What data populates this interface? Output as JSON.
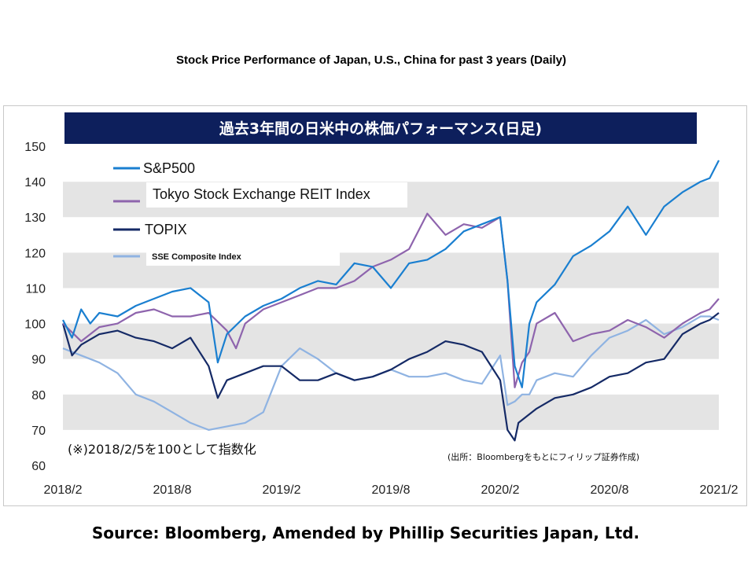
{
  "title": "Stock Price Performance of Japan, U.S., China for past 3 years (Daily)",
  "source": "Source: Bloomberg, Amended by Phillip Securities Japan, Ltd.",
  "chart_data": {
    "type": "line",
    "title": "過去3年間の日米中の株価パフォーマンス(日足)",
    "note": "(※)2018/2/5を100として指数化",
    "credit": "(出所：Bloombergをもとにフィリップ証券作成)",
    "ylim": [
      60,
      150
    ],
    "yticks": [
      60,
      70,
      80,
      90,
      100,
      110,
      120,
      130,
      140,
      150
    ],
    "xticks": [
      "2018/2",
      "2018/8",
      "2019/2",
      "2019/8",
      "2020/2",
      "2020/8",
      "2021/2"
    ],
    "xtick_pos": [
      0,
      6,
      12,
      18,
      24,
      30,
      36
    ],
    "grid": "horizontal bands",
    "legend_position": "top-left",
    "series": [
      {
        "name": "S&P500",
        "color": "#1a7fd0",
        "x": [
          0,
          0.5,
          1,
          1.5,
          2,
          3,
          4,
          5,
          6,
          7,
          8,
          8.5,
          9,
          10,
          11,
          12,
          13,
          14,
          15,
          16,
          17,
          18,
          19,
          20,
          21,
          22,
          23,
          24,
          24.4,
          24.8,
          25.2,
          25.6,
          26,
          27,
          28,
          29,
          30,
          31,
          32,
          33,
          34,
          35,
          35.5,
          36
        ],
        "values": [
          101,
          96,
          104,
          100,
          103,
          102,
          105,
          107,
          109,
          110,
          106,
          89,
          97,
          102,
          105,
          107,
          110,
          112,
          111,
          117,
          116,
          110,
          117,
          118,
          121,
          126,
          128,
          130,
          112,
          88,
          82,
          100,
          106,
          111,
          119,
          122,
          126,
          133,
          125,
          133,
          137,
          140,
          141,
          146
        ]
      },
      {
        "name": "Tokyo Stock Exchange REIT Index",
        "color": "#8e64ad",
        "x": [
          0,
          1,
          2,
          3,
          4,
          5,
          6,
          7,
          8,
          9,
          9.5,
          10,
          11,
          12,
          13,
          14,
          15,
          16,
          17,
          18,
          19,
          20,
          21,
          22,
          23,
          24,
          24.4,
          24.8,
          25.2,
          25.6,
          26,
          27,
          28,
          29,
          30,
          31,
          32,
          33,
          34,
          35,
          35.5,
          36
        ],
        "values": [
          100,
          95,
          99,
          100,
          103,
          104,
          102,
          102,
          103,
          98,
          93,
          100,
          104,
          106,
          108,
          110,
          110,
          112,
          116,
          118,
          121,
          131,
          125,
          128,
          127,
          130,
          112,
          82,
          89,
          92,
          100,
          103,
          95,
          97,
          98,
          101,
          99,
          96,
          100,
          103,
          104,
          107
        ]
      },
      {
        "name": "TOPIX",
        "color": "#152a66",
        "x": [
          0,
          0.5,
          1,
          2,
          3,
          4,
          5,
          6,
          7,
          8,
          8.5,
          9,
          10,
          11,
          12,
          13,
          14,
          15,
          16,
          17,
          18,
          19,
          20,
          21,
          22,
          23,
          24,
          24.4,
          24.8,
          25,
          25.5,
          26,
          27,
          28,
          29,
          30,
          31,
          32,
          33,
          34,
          35,
          35.5,
          36
        ],
        "values": [
          100,
          91,
          94,
          97,
          98,
          96,
          95,
          93,
          96,
          88,
          79,
          84,
          86,
          88,
          88,
          84,
          84,
          86,
          84,
          85,
          87,
          90,
          92,
          95,
          94,
          92,
          84,
          70,
          67,
          72,
          74,
          76,
          79,
          80,
          82,
          85,
          86,
          89,
          90,
          97,
          100,
          101,
          103
        ]
      },
      {
        "name": "SSE Composite Index",
        "color": "#8fb3e2",
        "x": [
          0,
          1,
          2,
          3,
          4,
          5,
          6,
          7,
          8,
          9,
          10,
          11,
          12,
          13,
          14,
          15,
          16,
          17,
          18,
          19,
          20,
          21,
          22,
          23,
          24,
          24.4,
          24.8,
          25.2,
          25.6,
          26,
          27,
          28,
          29,
          30,
          31,
          32,
          33,
          34,
          35,
          35.5,
          36
        ],
        "values": [
          93,
          91,
          89,
          86,
          80,
          78,
          75,
          72,
          70,
          71,
          72,
          75,
          88,
          93,
          90,
          86,
          84,
          85,
          87,
          85,
          85,
          86,
          84,
          83,
          91,
          77,
          78,
          80,
          80,
          84,
          86,
          85,
          91,
          96,
          98,
          101,
          97,
          99,
          102,
          102,
          101
        ]
      }
    ]
  }
}
